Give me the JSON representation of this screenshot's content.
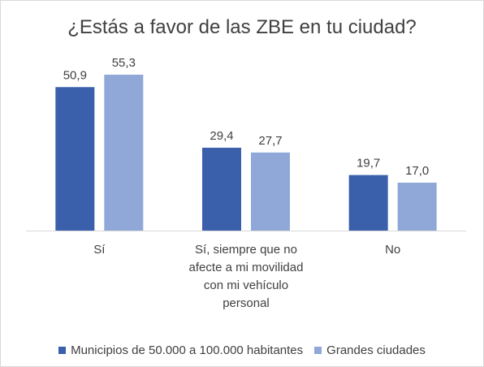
{
  "chart_data": {
    "type": "bar",
    "title": "¿Estás a favor de las ZBE en tu ciudad?",
    "categories": [
      "Sí",
      "Sí, siempre que no afecte a mi movilidad con mi vehículo personal",
      "No"
    ],
    "category_lines": [
      [
        "Sí"
      ],
      [
        "Sí, siempre que no",
        "afecte a mi movilidad",
        "con mi vehículo",
        "personal"
      ],
      [
        "No"
      ]
    ],
    "series": [
      {
        "name": "Municipios de 50.000 a 100.000 habitantes",
        "values": [
          50.9,
          29.4,
          19.7
        ],
        "labels": [
          "50,9",
          "29,4",
          "19,7"
        ],
        "color": "#3a5fab"
      },
      {
        "name": "Grandes ciudades",
        "values": [
          55.3,
          27.7,
          17.0
        ],
        "labels": [
          "55,3",
          "27,7",
          "17,0"
        ],
        "color": "#8fa8d8"
      }
    ],
    "xlabel": "",
    "ylabel": "",
    "ylim": [
      0,
      60
    ],
    "grid": false,
    "legend_position": "bottom"
  }
}
